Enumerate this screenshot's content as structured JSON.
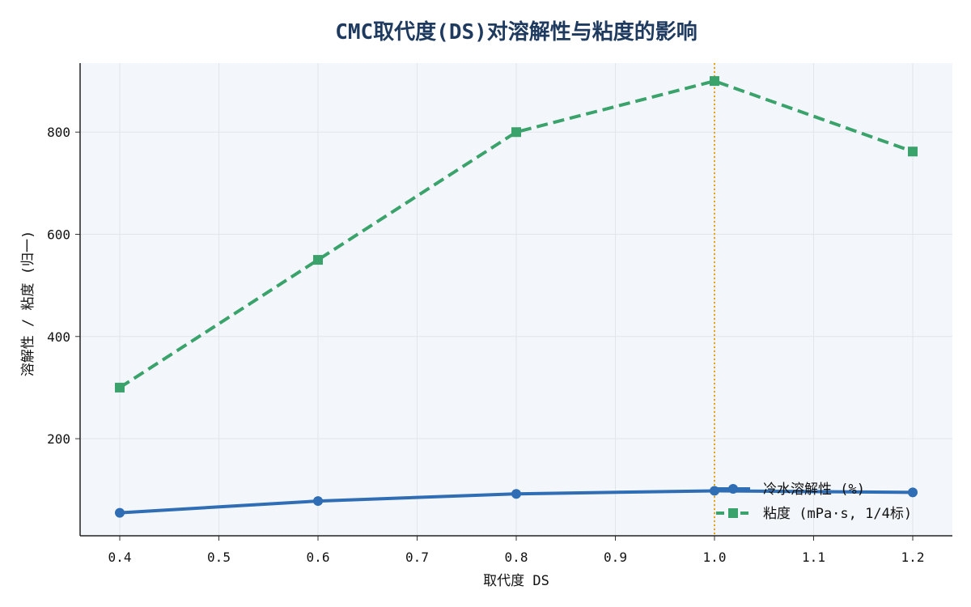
{
  "chart_data": {
    "type": "line",
    "title": "CMC取代度(DS)对溶解性与粘度的影响",
    "xlabel": "取代度 DS",
    "ylabel": "溶解性 / 粘度 (归一)",
    "xlim": [
      0.36,
      1.24
    ],
    "ylim": [
      10,
      935
    ],
    "xticks": [
      "0.4",
      "0.5",
      "0.6",
      "0.7",
      "0.8",
      "0.9",
      "1.0",
      "1.1",
      "1.2"
    ],
    "yticks": [
      "200",
      "400",
      "600",
      "800"
    ],
    "x": [
      0.4,
      0.6,
      0.8,
      1.0,
      1.2
    ],
    "series": [
      {
        "name": "冷水溶解性 (%)",
        "values": [
          55,
          78,
          92,
          98,
          95
        ],
        "color": "#2f6db5",
        "marker": "circle",
        "linestyle": "solid"
      },
      {
        "name": "粘度 (mPa·s, 1/4标)",
        "values": [
          300,
          550,
          800,
          900,
          762
        ],
        "color": "#3aa26b",
        "marker": "square",
        "linestyle": "dashed"
      }
    ],
    "annotations": [
      {
        "type": "vline",
        "x": 1.0,
        "color": "#e8a317",
        "linestyle": "dotted"
      }
    ],
    "grid": true,
    "legend": "bottom-right"
  }
}
